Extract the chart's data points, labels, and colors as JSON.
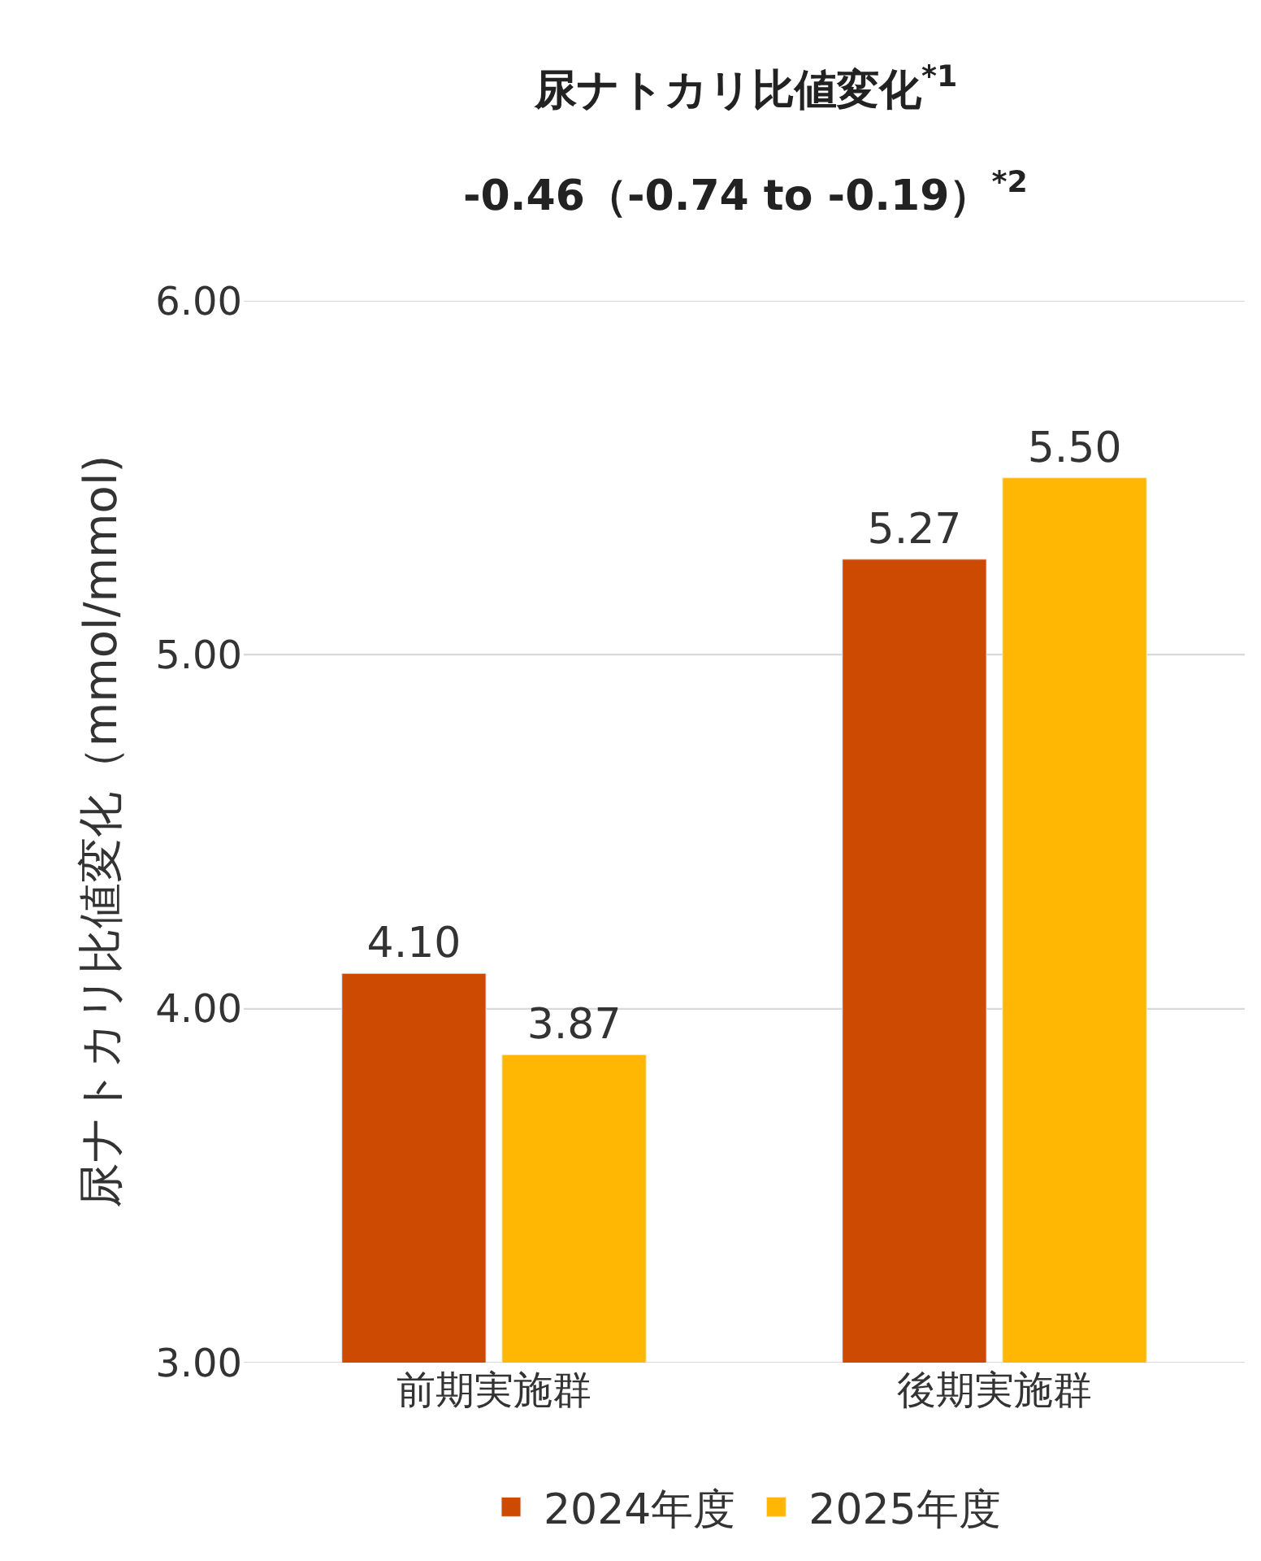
{
  "chart_data": {
    "type": "bar",
    "title": "尿ナトカリ比値変化$^{*1}$",
    "subtitle": "-0.46（-0.74 to -0.19）$^{*2}$",
    "ylabel": "尿ナトカリ比値変化（mmol/mmol)",
    "categories": [
      "前期実施群",
      "後期実施群"
    ],
    "series": [
      {
        "name": "2024年度",
        "color": "#cc4a02",
        "values": [
          4.1,
          5.27
        ],
        "value_labels": [
          "4.10",
          "5.27"
        ]
      },
      {
        "name": "2025年度",
        "color": "#ffb703",
        "values": [
          3.87,
          5.5
        ],
        "value_labels": [
          "3.87",
          "5.50"
        ]
      }
    ],
    "ylim": [
      3,
      6
    ],
    "yticks": [
      {
        "value": 3,
        "label": "3.00"
      },
      {
        "value": 4,
        "label": "4.00"
      },
      {
        "value": 5,
        "label": "5.00"
      },
      {
        "value": 6,
        "label": "6.00"
      }
    ],
    "grid": "y",
    "legend": "bottom"
  }
}
